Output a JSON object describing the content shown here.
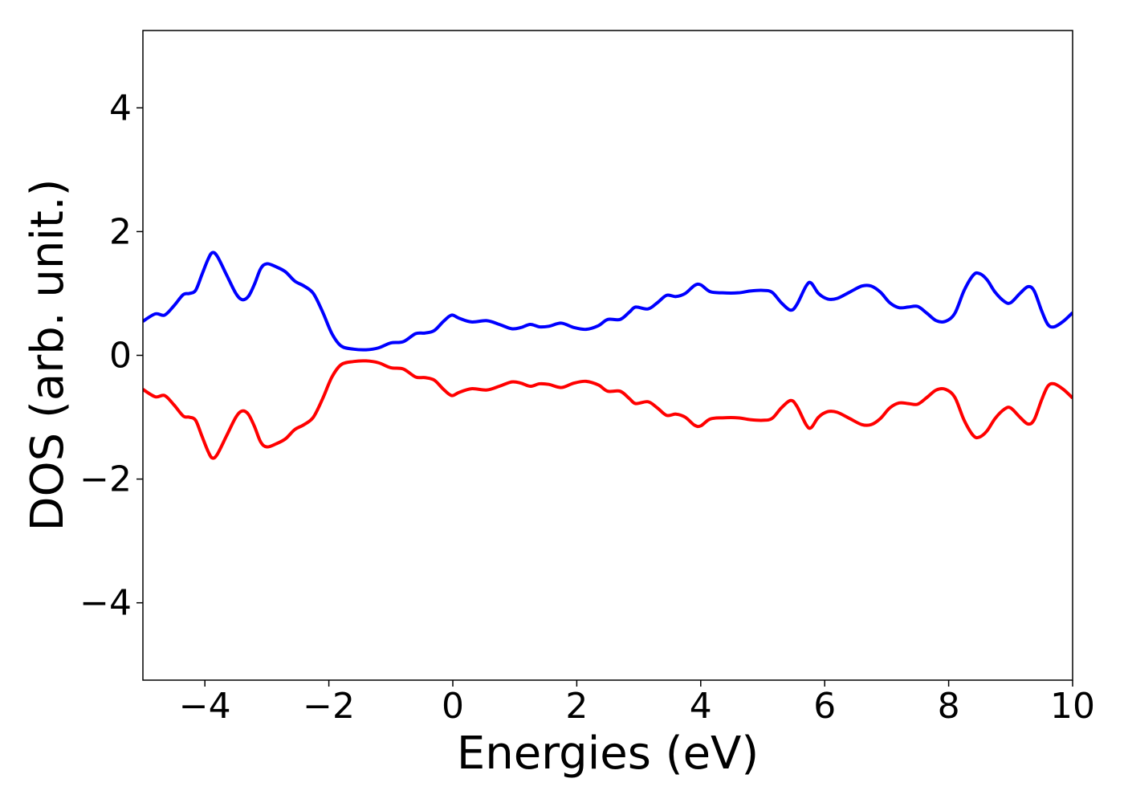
{
  "chart_data": {
    "type": "line",
    "title": "",
    "xlabel": "Energies (eV)",
    "ylabel": "DOS (arb. unit.)",
    "xlim": [
      -5,
      10
    ],
    "ylim": [
      -5.25,
      5.25
    ],
    "grid": false,
    "legend": "none",
    "x_ticks": [
      -4,
      -2,
      0,
      2,
      4,
      6,
      8,
      10
    ],
    "y_ticks": [
      -4,
      -2,
      0,
      2,
      4
    ],
    "x_tick_labels": [
      "−4",
      "−2",
      "0",
      "2",
      "4",
      "6",
      "8",
      "10"
    ],
    "y_tick_labels": [
      "−4",
      "−2",
      "0",
      "2",
      "4"
    ],
    "series": [
      {
        "color": "#0000ff",
        "points": [
          [
            -5.0,
            0.55
          ],
          [
            -4.8,
            0.67
          ],
          [
            -4.65,
            0.65
          ],
          [
            -4.5,
            0.8
          ],
          [
            -4.35,
            0.98
          ],
          [
            -4.25,
            1.0
          ],
          [
            -4.15,
            1.05
          ],
          [
            -4.05,
            1.3
          ],
          [
            -3.95,
            1.55
          ],
          [
            -3.88,
            1.66
          ],
          [
            -3.8,
            1.6
          ],
          [
            -3.65,
            1.3
          ],
          [
            -3.5,
            1.0
          ],
          [
            -3.4,
            0.9
          ],
          [
            -3.3,
            0.95
          ],
          [
            -3.2,
            1.15
          ],
          [
            -3.1,
            1.4
          ],
          [
            -3.0,
            1.48
          ],
          [
            -2.85,
            1.43
          ],
          [
            -2.7,
            1.35
          ],
          [
            -2.55,
            1.2
          ],
          [
            -2.4,
            1.12
          ],
          [
            -2.25,
            1.0
          ],
          [
            -2.1,
            0.7
          ],
          [
            -1.95,
            0.35
          ],
          [
            -1.8,
            0.15
          ],
          [
            -1.6,
            0.1
          ],
          [
            -1.4,
            0.09
          ],
          [
            -1.2,
            0.12
          ],
          [
            -1.0,
            0.2
          ],
          [
            -0.8,
            0.22
          ],
          [
            -0.6,
            0.35
          ],
          [
            -0.45,
            0.36
          ],
          [
            -0.3,
            0.4
          ],
          [
            -0.15,
            0.55
          ],
          [
            -0.02,
            0.65
          ],
          [
            0.1,
            0.6
          ],
          [
            0.3,
            0.54
          ],
          [
            0.55,
            0.56
          ],
          [
            0.75,
            0.5
          ],
          [
            0.95,
            0.43
          ],
          [
            1.1,
            0.45
          ],
          [
            1.25,
            0.5
          ],
          [
            1.4,
            0.46
          ],
          [
            1.55,
            0.47
          ],
          [
            1.75,
            0.52
          ],
          [
            1.95,
            0.45
          ],
          [
            2.15,
            0.42
          ],
          [
            2.35,
            0.48
          ],
          [
            2.5,
            0.58
          ],
          [
            2.7,
            0.58
          ],
          [
            2.85,
            0.7
          ],
          [
            2.95,
            0.78
          ],
          [
            3.15,
            0.75
          ],
          [
            3.3,
            0.85
          ],
          [
            3.45,
            0.97
          ],
          [
            3.6,
            0.95
          ],
          [
            3.75,
            1.0
          ],
          [
            3.9,
            1.13
          ],
          [
            4.0,
            1.14
          ],
          [
            4.15,
            1.03
          ],
          [
            4.35,
            1.01
          ],
          [
            4.6,
            1.01
          ],
          [
            4.8,
            1.04
          ],
          [
            5.0,
            1.05
          ],
          [
            5.15,
            1.02
          ],
          [
            5.3,
            0.85
          ],
          [
            5.45,
            0.73
          ],
          [
            5.55,
            0.82
          ],
          [
            5.7,
            1.12
          ],
          [
            5.78,
            1.17
          ],
          [
            5.9,
            1.0
          ],
          [
            6.05,
            0.91
          ],
          [
            6.2,
            0.92
          ],
          [
            6.4,
            1.02
          ],
          [
            6.6,
            1.12
          ],
          [
            6.75,
            1.12
          ],
          [
            6.9,
            1.02
          ],
          [
            7.05,
            0.85
          ],
          [
            7.2,
            0.77
          ],
          [
            7.35,
            0.78
          ],
          [
            7.5,
            0.79
          ],
          [
            7.65,
            0.68
          ],
          [
            7.8,
            0.56
          ],
          [
            7.95,
            0.55
          ],
          [
            8.1,
            0.68
          ],
          [
            8.25,
            1.05
          ],
          [
            8.4,
            1.3
          ],
          [
            8.5,
            1.32
          ],
          [
            8.62,
            1.22
          ],
          [
            8.75,
            1.02
          ],
          [
            8.9,
            0.87
          ],
          [
            9.0,
            0.85
          ],
          [
            9.15,
            1.0
          ],
          [
            9.28,
            1.11
          ],
          [
            9.38,
            1.04
          ],
          [
            9.5,
            0.72
          ],
          [
            9.6,
            0.5
          ],
          [
            9.7,
            0.46
          ],
          [
            9.85,
            0.55
          ],
          [
            10.0,
            0.69
          ]
        ]
      },
      {
        "color": "#ff0000",
        "points": [
          [
            -5.0,
            -0.55
          ],
          [
            -4.8,
            -0.67
          ],
          [
            -4.65,
            -0.65
          ],
          [
            -4.5,
            -0.8
          ],
          [
            -4.35,
            -0.98
          ],
          [
            -4.25,
            -1.0
          ],
          [
            -4.15,
            -1.05
          ],
          [
            -4.05,
            -1.3
          ],
          [
            -3.95,
            -1.55
          ],
          [
            -3.88,
            -1.66
          ],
          [
            -3.8,
            -1.6
          ],
          [
            -3.65,
            -1.3
          ],
          [
            -3.5,
            -1.0
          ],
          [
            -3.4,
            -0.9
          ],
          [
            -3.3,
            -0.95
          ],
          [
            -3.2,
            -1.15
          ],
          [
            -3.1,
            -1.4
          ],
          [
            -3.0,
            -1.48
          ],
          [
            -2.85,
            -1.43
          ],
          [
            -2.7,
            -1.35
          ],
          [
            -2.55,
            -1.2
          ],
          [
            -2.4,
            -1.12
          ],
          [
            -2.25,
            -1.0
          ],
          [
            -2.1,
            -0.7
          ],
          [
            -1.95,
            -0.35
          ],
          [
            -1.8,
            -0.15
          ],
          [
            -1.6,
            -0.1
          ],
          [
            -1.4,
            -0.09
          ],
          [
            -1.2,
            -0.12
          ],
          [
            -1.0,
            -0.2
          ],
          [
            -0.8,
            -0.22
          ],
          [
            -0.6,
            -0.35
          ],
          [
            -0.45,
            -0.36
          ],
          [
            -0.3,
            -0.4
          ],
          [
            -0.15,
            -0.55
          ],
          [
            -0.02,
            -0.65
          ],
          [
            0.1,
            -0.6
          ],
          [
            0.3,
            -0.54
          ],
          [
            0.55,
            -0.56
          ],
          [
            0.75,
            -0.5
          ],
          [
            0.95,
            -0.43
          ],
          [
            1.1,
            -0.45
          ],
          [
            1.25,
            -0.5
          ],
          [
            1.4,
            -0.46
          ],
          [
            1.55,
            -0.47
          ],
          [
            1.75,
            -0.52
          ],
          [
            1.95,
            -0.45
          ],
          [
            2.15,
            -0.42
          ],
          [
            2.35,
            -0.48
          ],
          [
            2.5,
            -0.58
          ],
          [
            2.7,
            -0.58
          ],
          [
            2.85,
            -0.7
          ],
          [
            2.95,
            -0.78
          ],
          [
            3.15,
            -0.75
          ],
          [
            3.3,
            -0.85
          ],
          [
            3.45,
            -0.97
          ],
          [
            3.6,
            -0.95
          ],
          [
            3.75,
            -1.0
          ],
          [
            3.9,
            -1.13
          ],
          [
            4.0,
            -1.14
          ],
          [
            4.15,
            -1.03
          ],
          [
            4.35,
            -1.01
          ],
          [
            4.6,
            -1.01
          ],
          [
            4.8,
            -1.04
          ],
          [
            5.0,
            -1.05
          ],
          [
            5.15,
            -1.02
          ],
          [
            5.3,
            -0.85
          ],
          [
            5.45,
            -0.73
          ],
          [
            5.55,
            -0.82
          ],
          [
            5.7,
            -1.12
          ],
          [
            5.78,
            -1.17
          ],
          [
            5.9,
            -1.0
          ],
          [
            6.05,
            -0.91
          ],
          [
            6.2,
            -0.92
          ],
          [
            6.4,
            -1.02
          ],
          [
            6.6,
            -1.12
          ],
          [
            6.75,
            -1.12
          ],
          [
            6.9,
            -1.02
          ],
          [
            7.05,
            -0.85
          ],
          [
            7.2,
            -0.77
          ],
          [
            7.35,
            -0.78
          ],
          [
            7.5,
            -0.79
          ],
          [
            7.65,
            -0.68
          ],
          [
            7.8,
            -0.56
          ],
          [
            7.95,
            -0.55
          ],
          [
            8.1,
            -0.68
          ],
          [
            8.25,
            -1.05
          ],
          [
            8.4,
            -1.3
          ],
          [
            8.5,
            -1.32
          ],
          [
            8.62,
            -1.22
          ],
          [
            8.75,
            -1.02
          ],
          [
            8.9,
            -0.87
          ],
          [
            9.0,
            -0.85
          ],
          [
            9.15,
            -1.0
          ],
          [
            9.28,
            -1.11
          ],
          [
            9.38,
            -1.04
          ],
          [
            9.5,
            -0.72
          ],
          [
            9.6,
            -0.5
          ],
          [
            9.7,
            -0.46
          ],
          [
            9.85,
            -0.55
          ],
          [
            10.0,
            -0.69
          ]
        ]
      }
    ]
  }
}
